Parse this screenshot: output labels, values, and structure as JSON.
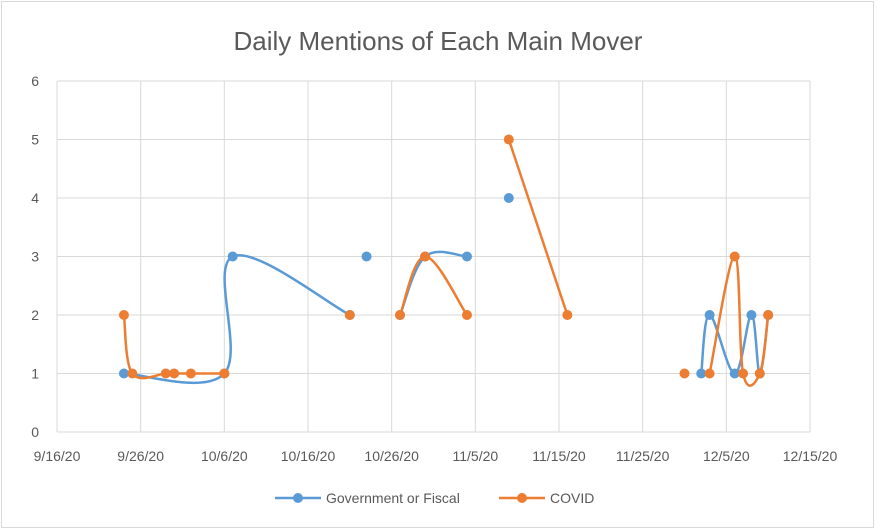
{
  "chart_data": {
    "type": "line",
    "title": "Daily Mentions of Each Main Mover",
    "xlabel": "",
    "ylabel": "",
    "x_axis": {
      "kind": "date",
      "min": "2020-09-16",
      "max": "2020-12-15",
      "tick_labels": [
        "9/16/20",
        "9/26/20",
        "10/6/20",
        "10/16/20",
        "10/26/20",
        "11/5/20",
        "11/15/20",
        "11/25/20",
        "12/5/20",
        "12/15/20"
      ]
    },
    "y_axis": {
      "min": 0,
      "max": 6,
      "tick_labels": [
        "0",
        "1",
        "2",
        "3",
        "4",
        "5",
        "6"
      ]
    },
    "grid": "vertical and horizontal gridlines",
    "legend_position": "bottom",
    "series": [
      {
        "name": "Government or Fiscal",
        "color": "#5b9bd5",
        "points": [
          {
            "x": "2020-09-24",
            "y": 1
          },
          {
            "x": "2020-10-06",
            "y": 1
          },
          {
            "x": "2020-10-07",
            "y": 3
          },
          {
            "x": "2020-10-21",
            "y": 2
          },
          {
            "x": "2020-10-23",
            "y": 3
          },
          {
            "x": "2020-10-27",
            "y": 2
          },
          {
            "x": "2020-10-30",
            "y": 3
          },
          {
            "x": "2020-11-04",
            "y": 3
          },
          {
            "x": "2020-11-09",
            "y": 4
          },
          {
            "x": "2020-12-02",
            "y": 1
          },
          {
            "x": "2020-12-03",
            "y": 2
          },
          {
            "x": "2020-12-06",
            "y": 1
          },
          {
            "x": "2020-12-08",
            "y": 2
          },
          {
            "x": "2020-12-09",
            "y": 1
          },
          {
            "x": "2020-12-10",
            "y": 2
          }
        ],
        "segments": [
          [
            [
              0,
              1
            ],
            [
              1,
              1
            ],
            [
              2,
              3
            ],
            [
              3,
              2
            ]
          ],
          [
            [
              4,
              3
            ]
          ],
          [
            [
              5,
              2
            ],
            [
              6,
              3
            ],
            [
              7,
              3
            ]
          ],
          [
            [
              8,
              4
            ]
          ],
          [
            [
              9,
              1
            ],
            [
              10,
              2
            ],
            [
              11,
              1
            ],
            [
              12,
              2
            ],
            [
              13,
              1
            ],
            [
              14,
              2
            ]
          ]
        ]
      },
      {
        "name": "COVID",
        "color": "#ed7d31",
        "points": [
          {
            "x": "2020-09-24",
            "y": 2
          },
          {
            "x": "2020-09-25",
            "y": 1
          },
          {
            "x": "2020-09-29",
            "y": 1
          },
          {
            "x": "2020-09-30",
            "y": 1
          },
          {
            "x": "2020-10-02",
            "y": 1
          },
          {
            "x": "2020-10-06",
            "y": 1
          },
          {
            "x": "2020-10-21",
            "y": 2
          },
          {
            "x": "2020-10-27",
            "y": 2
          },
          {
            "x": "2020-10-30",
            "y": 3
          },
          {
            "x": "2020-11-04",
            "y": 2
          },
          {
            "x": "2020-11-09",
            "y": 5
          },
          {
            "x": "2020-11-16",
            "y": 2
          },
          {
            "x": "2020-11-30",
            "y": 1
          },
          {
            "x": "2020-12-03",
            "y": 1
          },
          {
            "x": "2020-12-06",
            "y": 3
          },
          {
            "x": "2020-12-07",
            "y": 1
          },
          {
            "x": "2020-12-09",
            "y": 1
          },
          {
            "x": "2020-12-10",
            "y": 2
          }
        ],
        "segments": [
          [
            [
              0,
              2
            ],
            [
              1,
              1
            ],
            [
              2,
              1
            ],
            [
              3,
              1
            ],
            [
              4,
              1
            ],
            [
              5,
              1
            ]
          ],
          [
            [
              6,
              2
            ]
          ],
          [
            [
              7,
              2
            ],
            [
              8,
              3
            ],
            [
              9,
              2
            ]
          ],
          [
            [
              10,
              5
            ],
            [
              11,
              2
            ]
          ],
          [
            [
              12,
              1
            ]
          ],
          [
            [
              13,
              1
            ],
            [
              14,
              3
            ],
            [
              15,
              1
            ],
            [
              16,
              1
            ],
            [
              17,
              2
            ]
          ]
        ]
      }
    ]
  }
}
